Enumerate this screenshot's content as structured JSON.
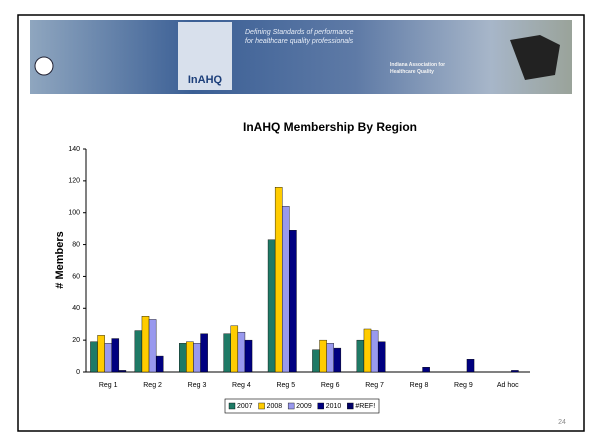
{
  "header": {
    "logo": "InAHQ",
    "tagline": "Defining Standards of performance for healthcare quality professionals",
    "org": "Indiana Association for Healthcare Quality"
  },
  "page_number": "24",
  "chart_data": {
    "type": "bar",
    "title": "InAHQ Membership By Region",
    "y_label": "# Members",
    "categories": [
      "Reg 1",
      "Reg 2",
      "Reg 3",
      "Reg 4",
      "Reg 5",
      "Reg 6",
      "Reg 7",
      "Reg 8",
      "Reg 9",
      "Ad hoc"
    ],
    "series": [
      {
        "name": "2007",
        "color": "#1f7a66",
        "values": [
          19,
          26,
          18,
          24,
          83,
          14,
          20,
          0,
          0,
          0
        ]
      },
      {
        "name": "2008",
        "color": "#ffcc00",
        "values": [
          23,
          35,
          19,
          29,
          116,
          20,
          27,
          0,
          0,
          0
        ]
      },
      {
        "name": "2009",
        "color": "#9999ee",
        "values": [
          18,
          33,
          18,
          25,
          104,
          18,
          26,
          0,
          0,
          0
        ]
      },
      {
        "name": "2010",
        "color": "#000080",
        "values": [
          21,
          10,
          24,
          20,
          89,
          15,
          19,
          3,
          8,
          1
        ]
      },
      {
        "name": "#REF!",
        "color": "#000066",
        "values": [
          1,
          0,
          0,
          0,
          0,
          0,
          0,
          0,
          0,
          0
        ]
      }
    ],
    "ylim": [
      0,
      140
    ],
    "yticks": [
      0,
      20,
      40,
      60,
      80,
      100,
      120,
      140
    ],
    "legend": "bottom"
  }
}
